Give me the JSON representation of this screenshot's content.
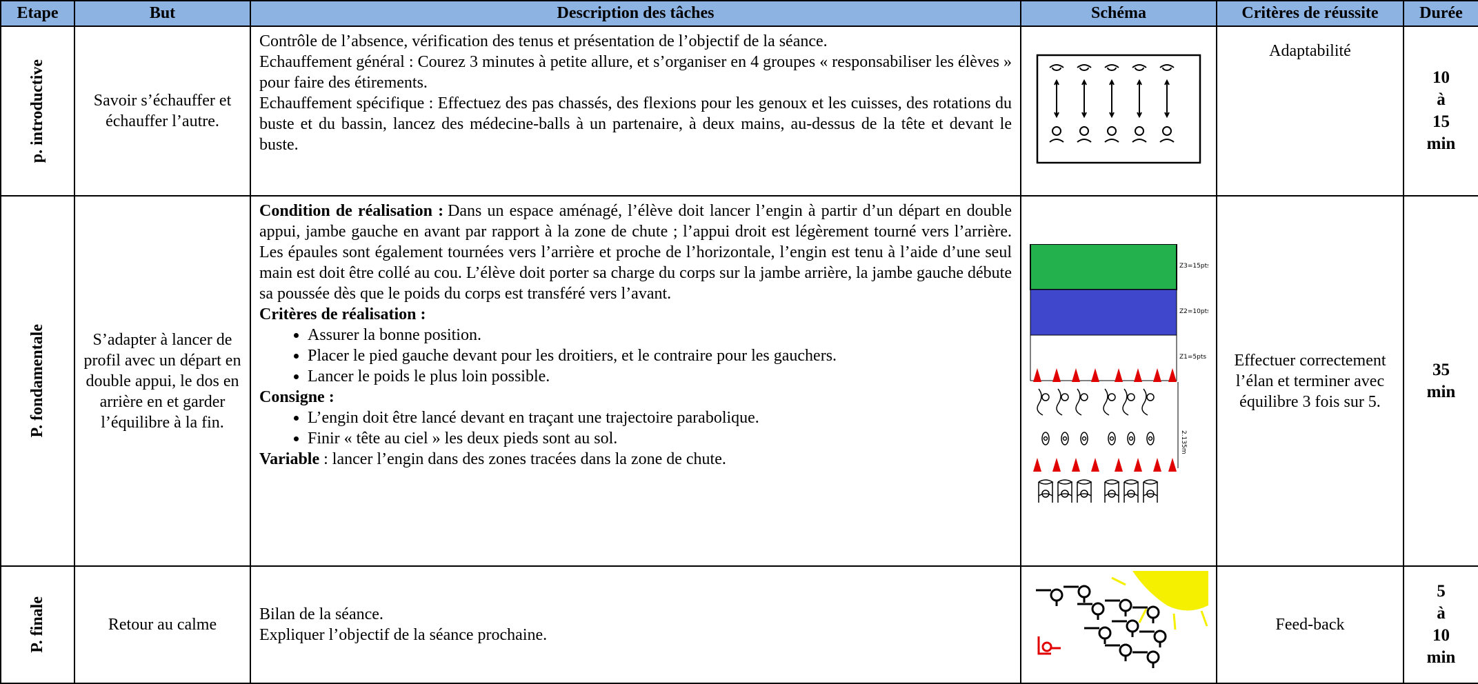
{
  "table": {
    "header": [
      "Etape",
      "But",
      "Description des tâches",
      "Schéma",
      "Critères de réussite",
      "Durée"
    ],
    "rows": [
      {
        "etape": "p. introductive",
        "but": "Savoir s’échauffer et échauffer l’autre.",
        "description": [
          {
            "text": "Contrôle de l’absence, vérification des tenus et présentation de l’objectif de la séance."
          },
          {
            "text": "Echauffement général : Courez 3 minutes à petite allure, et s’organiser en 4 groupes « responsabiliser les élèves » pour faire des étirements."
          },
          {
            "text": "Echauffement spécifique : Effectuez des pas chassés, des flexions pour les genoux et les cuisses, des rotations du buste et du bassin, lancez des médecine-balls à un partenaire, à deux mains, au-dessus de la tête et devant le buste."
          }
        ],
        "critere": "Adaptabilité",
        "duree": [
          "10",
          "à",
          "15",
          "min"
        ]
      },
      {
        "etape": "P. fondamentale",
        "but": "S’adapter à lancer de profil avec un départ en double appui, le dos en arrière en et garder l’équilibre à la fin.",
        "description": [
          {
            "label": "Condition de réalisation :",
            "text": "Dans un espace aménagé, l’élève doit lancer l’engin à partir d’un départ en double appui, jambe gauche en avant par rapport à la zone de chute ; l’appui droit est légèrement tourné vers l’arrière. Les épaules sont également tournées vers l’arrière et proche de l’horizontale, l’engin est tenu à l’aide d’une seul main est doit être collé au cou. L’élève doit porter sa charge du corps sur la jambe arrière, la jambe gauche débute sa poussée dès que le poids du corps est transféré vers l’avant."
          },
          {
            "label": "Critères de réalisation :",
            "items": [
              "Assurer la bonne position.",
              "Placer le pied gauche devant pour les droitiers, et le contraire pour les gauchers.",
              "Lancer le poids le plus loin possible."
            ]
          },
          {
            "label": "Consigne :",
            "items": [
              "L’engin doit être lancé devant en traçant une trajectoire parabolique.",
              "Finir « tête au ciel » les deux pieds sont au sol."
            ]
          },
          {
            "label": "Variable",
            "text": ": lancer l’engin dans des zones tracées dans la zone de chute."
          }
        ],
        "schema_labels": [
          "Z3=15pts",
          "Z2=10pts",
          "Z1=5pts",
          "2.135m"
        ],
        "critere": "Effectuer correctement l’élan et terminer avec équilibre 3 fois sur 5.",
        "duree": [
          "35",
          "min"
        ]
      },
      {
        "etape": "P. finale",
        "but": "Retour au calme",
        "description": [
          {
            "text": "Bilan de la séance."
          },
          {
            "text": "Expliquer l’objectif de la séance prochaine."
          }
        ],
        "critere": "Feed-back",
        "duree": [
          "5",
          "à",
          "10",
          "min"
        ]
      }
    ]
  }
}
